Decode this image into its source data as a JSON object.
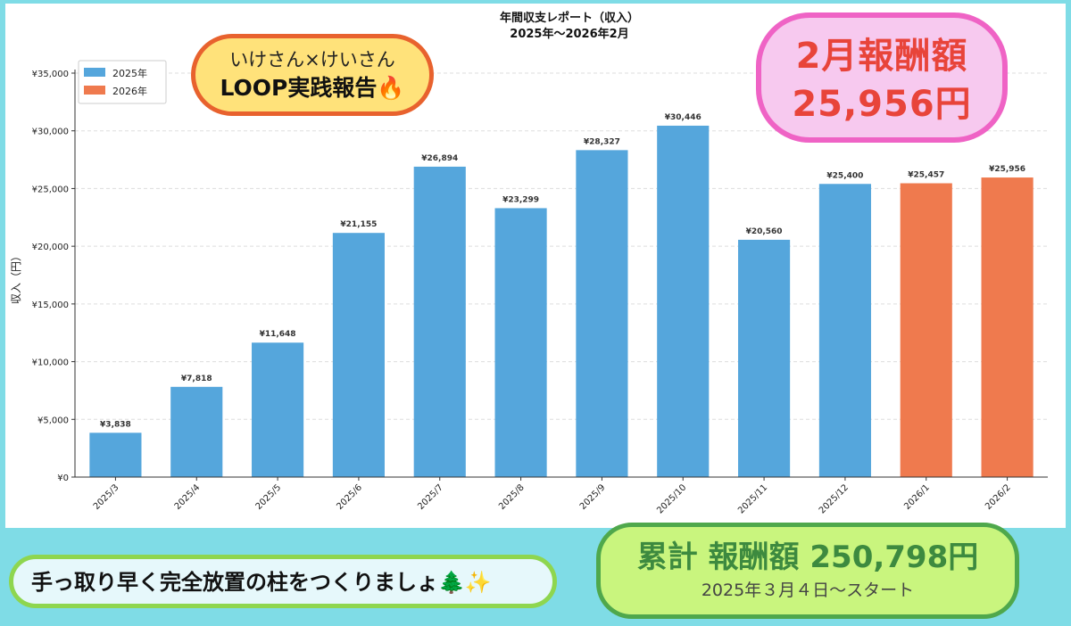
{
  "chart_data": {
    "type": "bar",
    "title": "年間収支レポート（収入）",
    "subtitle": "2025年〜2026年2月",
    "xlabel": "",
    "ylabel": "収入（円）",
    "ylim": [
      0,
      35000
    ],
    "yticks": [
      0,
      5000,
      10000,
      15000,
      20000,
      25000,
      30000,
      35000
    ],
    "ytick_labels": [
      "¥0",
      "¥5,000",
      "¥10,000",
      "¥15,000",
      "¥20,000",
      "¥25,000",
      "¥30,000",
      "¥35,000"
    ],
    "categories": [
      "2025/3",
      "2025/4",
      "2025/5",
      "2025/6",
      "2025/7",
      "2025/8",
      "2025/9",
      "2025/10",
      "2025/11",
      "2025/12",
      "2026/1",
      "2026/2"
    ],
    "values": [
      3838,
      7818,
      11648,
      21155,
      26894,
      23299,
      28327,
      30446,
      20560,
      25400,
      25457,
      25956
    ],
    "data_labels": [
      "¥3,838",
      "¥7,818",
      "¥11,648",
      "¥21,155",
      "¥26,894",
      "¥23,299",
      "¥28,327",
      "¥30,446",
      "¥20,560",
      "¥25,400",
      "¥25,457",
      "¥25,956"
    ],
    "bar_series": [
      "2025年",
      "2025年",
      "2025年",
      "2025年",
      "2025年",
      "2025年",
      "2025年",
      "2025年",
      "2025年",
      "2025年",
      "2026年",
      "2026年"
    ],
    "legend": {
      "placement": "top-left",
      "entries": [
        {
          "name": "2025年",
          "color": "#55a6dc"
        },
        {
          "name": "2026年",
          "color": "#ef7a4e"
        }
      ]
    },
    "grid": "y-dashed"
  },
  "badges": {
    "loop_line1": "いけさん×けいさん",
    "loop_line2": "LOOP実践報告🔥",
    "feb_line1": "2月報酬額",
    "feb_line2": "25,956円",
    "tip": "手っ取り早く完全放置の柱をつくりましょ🌲✨",
    "total_line1": "累計 報酬額 250,798円",
    "total_line2": "2025年３月４日〜スタート"
  }
}
